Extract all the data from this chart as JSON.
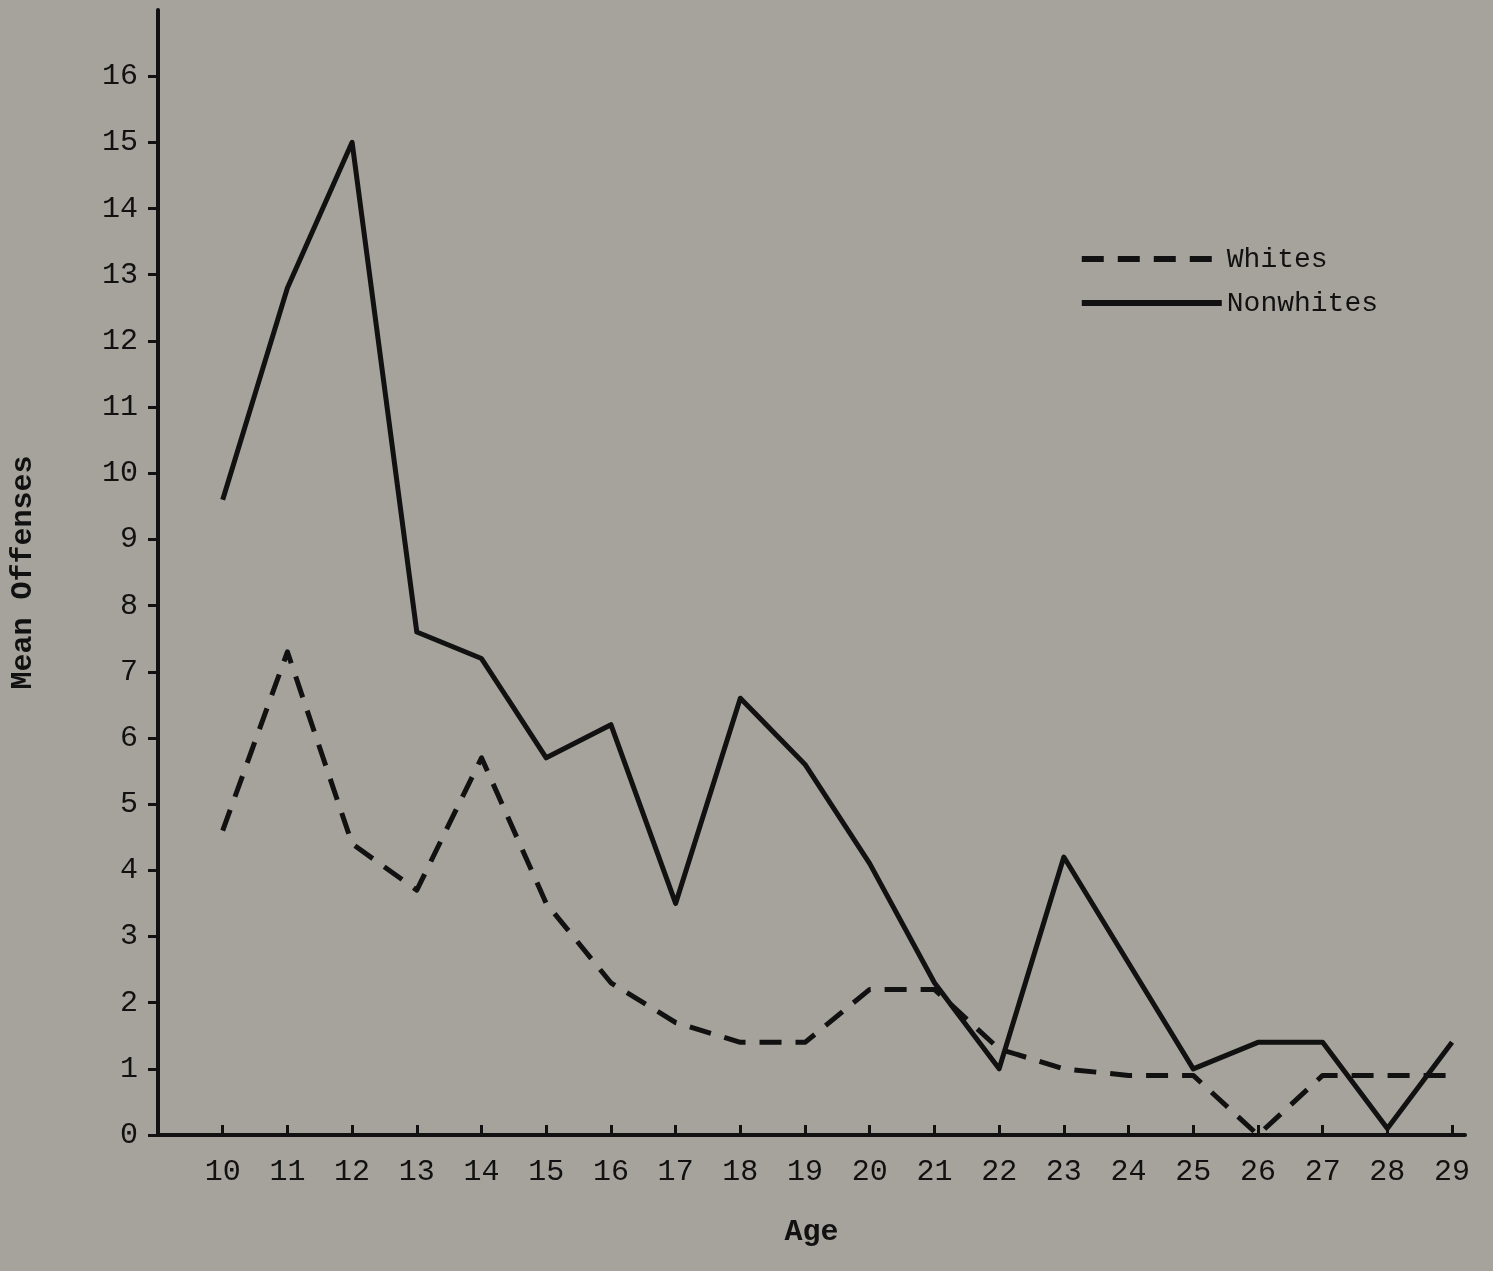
{
  "chart_data": {
    "type": "line",
    "xlabel": "Age",
    "ylabel": "Mean Offenses",
    "x": [
      10,
      11,
      12,
      13,
      14,
      15,
      16,
      17,
      18,
      19,
      20,
      21,
      22,
      23,
      24,
      25,
      26,
      27,
      28,
      29
    ],
    "series": [
      {
        "name": "Whites",
        "color": "#111111",
        "line_style": "dashed",
        "values": [
          4.6,
          7.3,
          4.4,
          3.7,
          5.7,
          3.5,
          2.3,
          1.7,
          1.4,
          1.4,
          2.2,
          2.2,
          1.3,
          1.0,
          0.9,
          0.9,
          0,
          0.9,
          0.9,
          0.9
        ]
      },
      {
        "name": "Nonwhites",
        "color": "#111111",
        "line_style": "solid",
        "values": [
          9.6,
          12.8,
          15.0,
          7.6,
          7.2,
          5.7,
          6.2,
          3.5,
          6.6,
          5.6,
          4.1,
          2.3,
          1.0,
          4.2,
          2.6,
          1.0,
          1.4,
          1.4,
          0.1,
          1.4
        ]
      }
    ],
    "xlim": [
      9,
      29.2
    ],
    "xticks": [
      10,
      11,
      12,
      13,
      14,
      15,
      16,
      17,
      18,
      19,
      20,
      21,
      22,
      23,
      24,
      25,
      26,
      27,
      28,
      29
    ],
    "ylim": [
      0,
      17
    ],
    "yticks": [
      0,
      1,
      2,
      3,
      4,
      5,
      6,
      7,
      8,
      9,
      10,
      11,
      12,
      13,
      14,
      15,
      16
    ],
    "grid": false,
    "legend": "top right",
    "marker": "none"
  }
}
